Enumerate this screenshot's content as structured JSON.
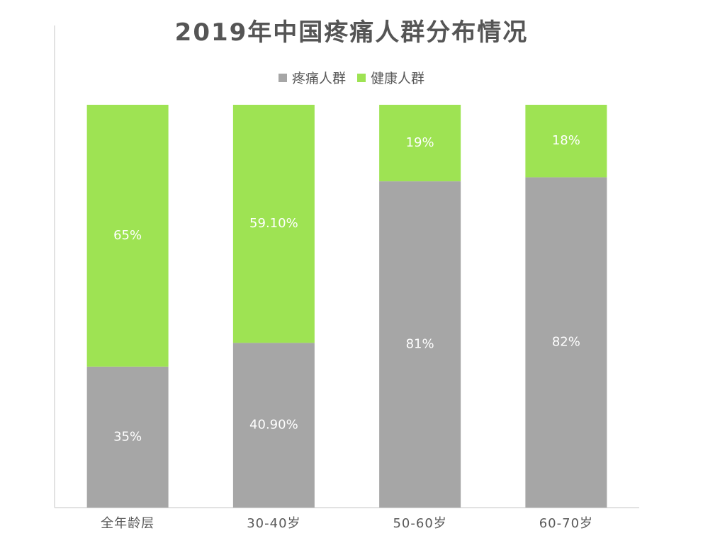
{
  "chart_data": {
    "type": "bar",
    "stacked": true,
    "title": "2019年中国疼痛人群分布情况",
    "categories": [
      "全年龄层",
      "30-40岁",
      "50-60岁",
      "60-70岁"
    ],
    "series": [
      {
        "name": "疼痛人群",
        "color": "#a6a6a6",
        "values": [
          35,
          40.9,
          81,
          82
        ],
        "labels": [
          "35%",
          "40.90%",
          "81%",
          "82%"
        ]
      },
      {
        "name": "健康人群",
        "color": "#9ee353",
        "values": [
          65,
          59.1,
          19,
          18
        ],
        "labels": [
          "65%",
          "59.10%",
          "19%",
          "18%"
        ]
      }
    ],
    "ylim": [
      0,
      100
    ],
    "legend_position": "top",
    "grid": false
  }
}
